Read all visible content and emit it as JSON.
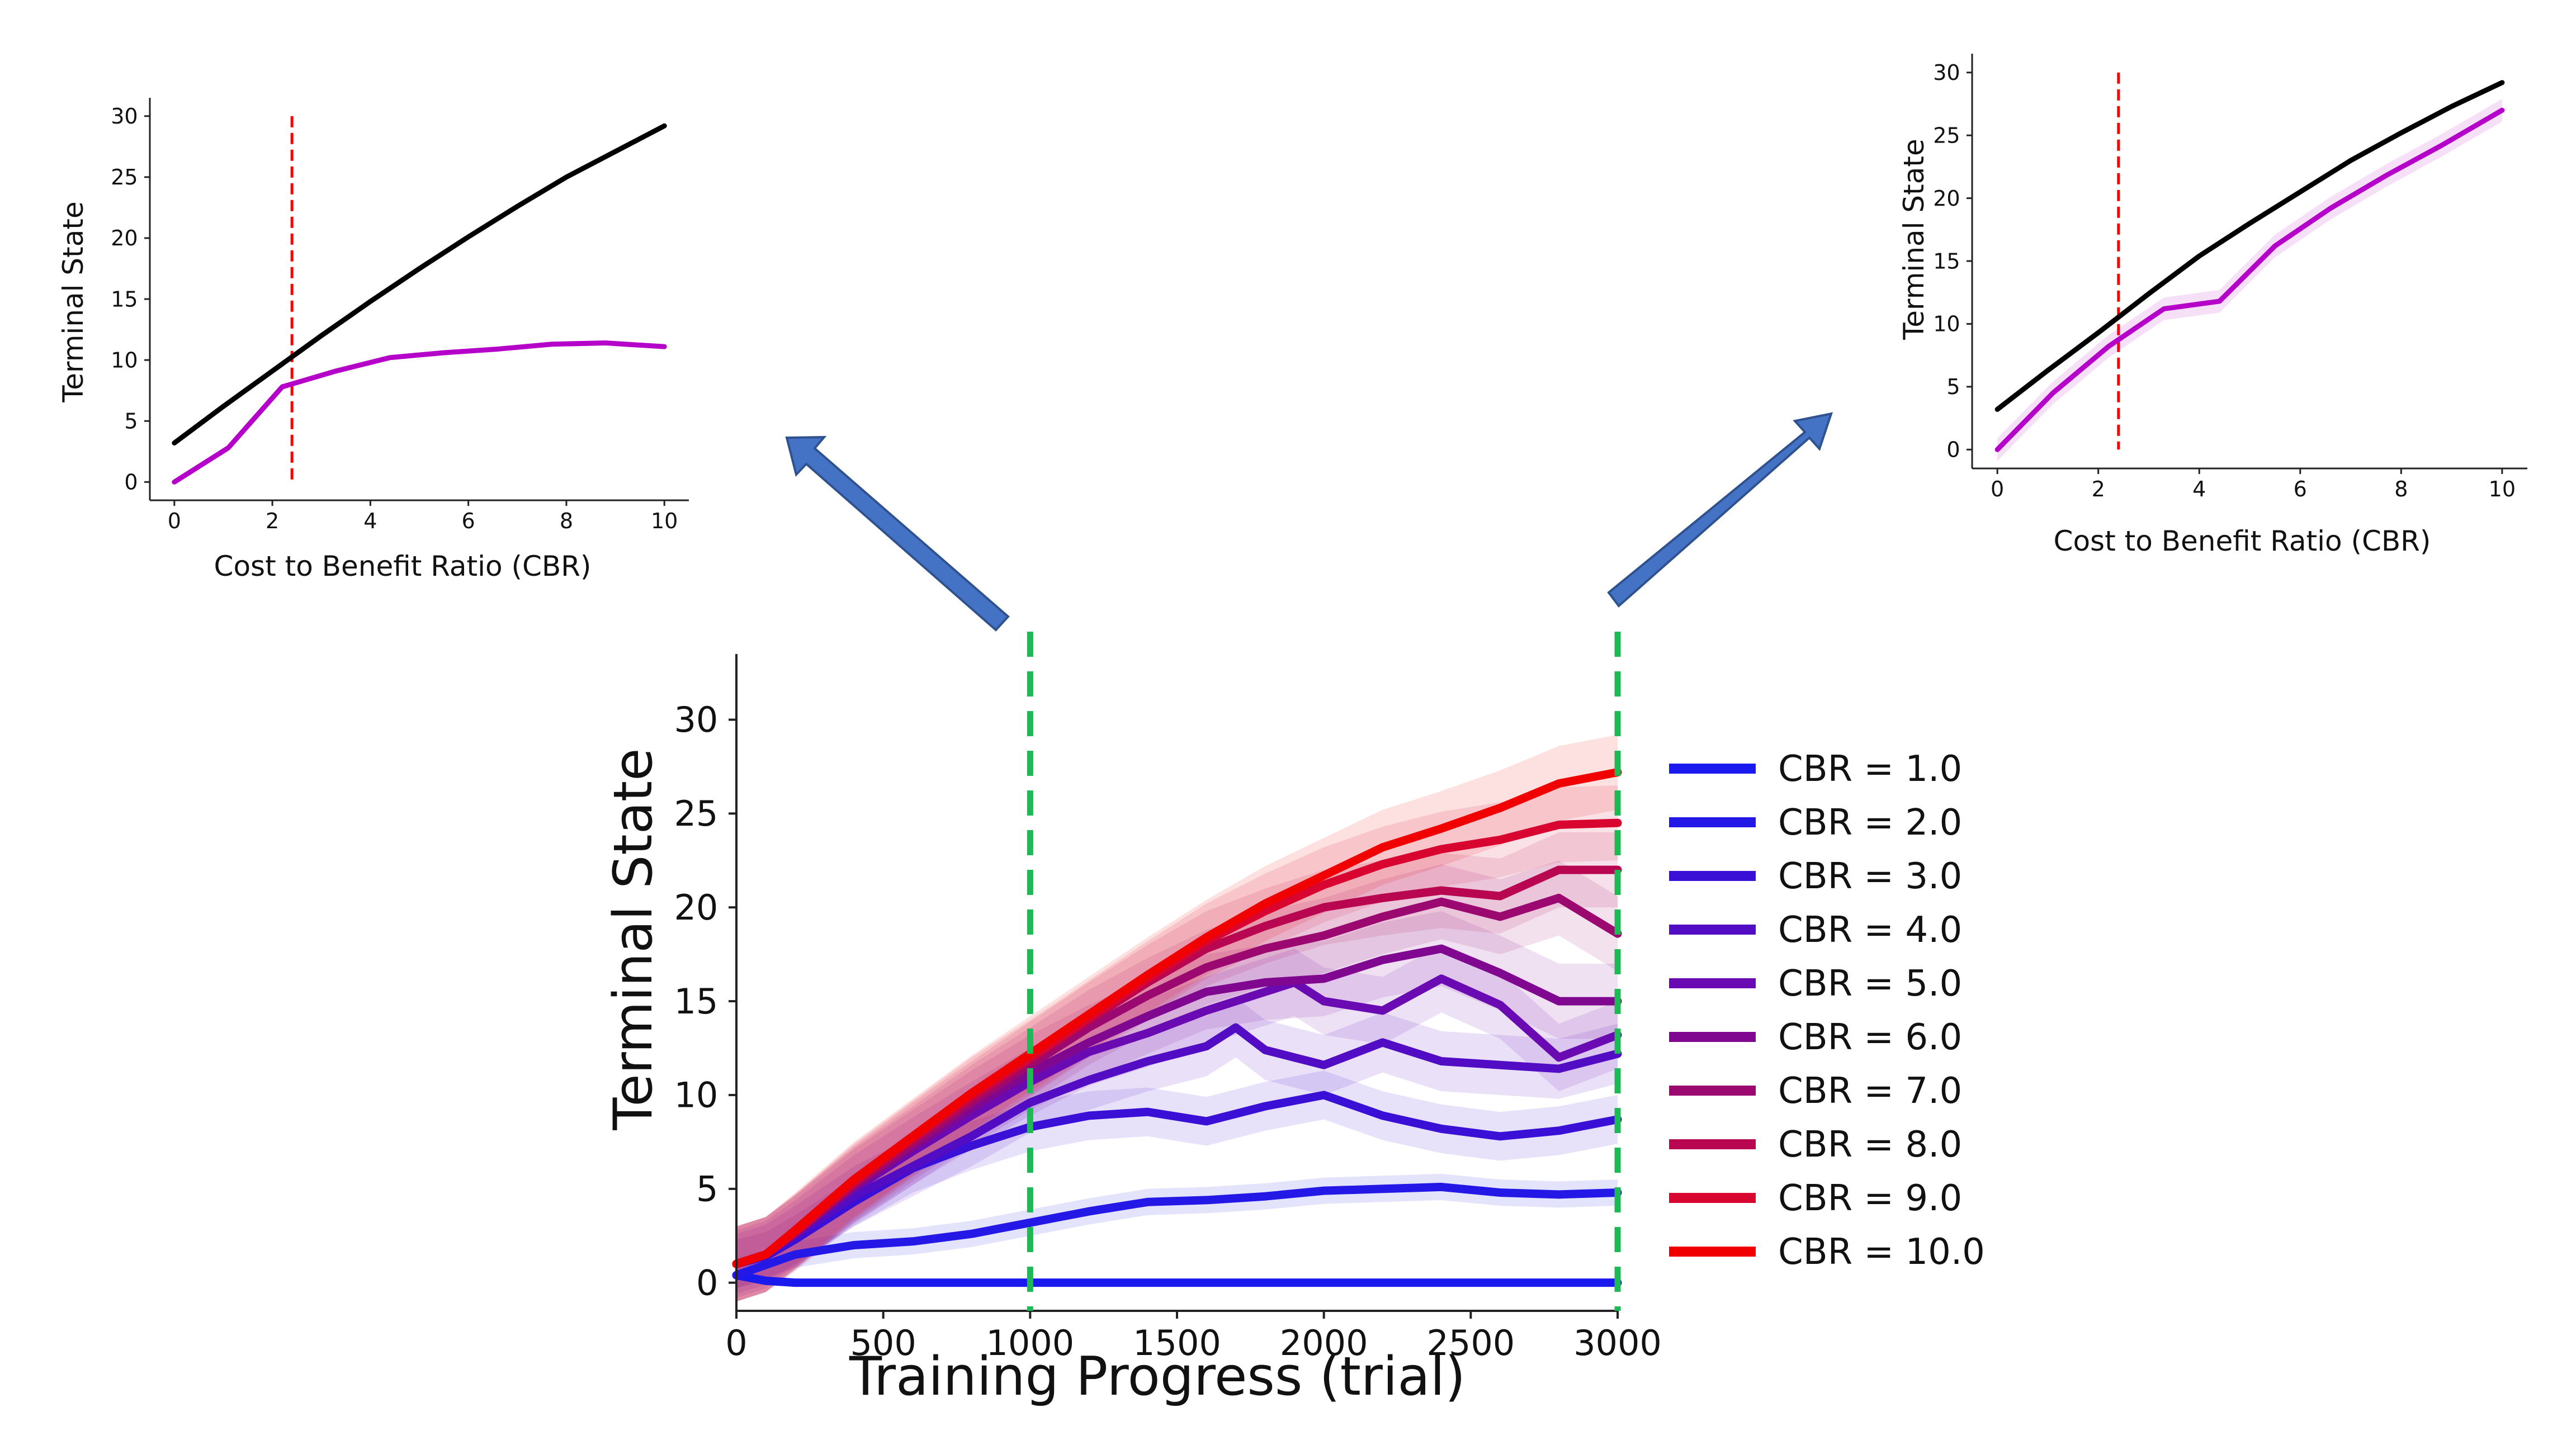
{
  "chart_data": [
    {
      "id": "main",
      "type": "line",
      "title": "",
      "xlabel": "Training Progress (trial)",
      "ylabel": "Terminal State",
      "xlim": [
        0,
        3000
      ],
      "ylim": [
        -1.5,
        33.5
      ],
      "xticks": [
        0,
        500,
        1000,
        1500,
        2000,
        2500,
        3000
      ],
      "yticks": [
        0,
        5,
        10,
        15,
        20,
        25,
        30
      ],
      "grid": false,
      "legend_position": "right",
      "markers": [
        {
          "x": 1000,
          "color": "#1db954",
          "style": "dashed"
        },
        {
          "x": 3000,
          "color": "#1db954",
          "style": "dashed"
        }
      ],
      "series": [
        {
          "name": "CBR = 1.0",
          "color": "#1a1aef",
          "band": 0.1,
          "x": [
            0,
            100,
            200,
            3000
          ],
          "y": [
            0.4,
            0.1,
            0,
            0
          ]
        },
        {
          "name": "CBR = 2.0",
          "color": "#2418e6",
          "band": 0.7,
          "x": [
            0,
            200,
            400,
            600,
            800,
            1000,
            1200,
            1400,
            1600,
            1800,
            2000,
            2200,
            2400,
            2600,
            2800,
            3000
          ],
          "y": [
            0.4,
            1.5,
            2.0,
            2.2,
            2.6,
            3.2,
            3.8,
            4.3,
            4.4,
            4.6,
            4.9,
            5.0,
            5.1,
            4.8,
            4.7,
            4.8
          ]
        },
        {
          "name": "CBR = 3.0",
          "color": "#3b10d6",
          "band": 1.3,
          "x": [
            0,
            100,
            200,
            400,
            600,
            800,
            1000,
            1200,
            1400,
            1600,
            1800,
            2000,
            2200,
            2400,
            2600,
            2800,
            3000
          ],
          "y": [
            1.0,
            1.4,
            2.3,
            4.3,
            6.1,
            7.3,
            8.3,
            8.9,
            9.1,
            8.6,
            9.4,
            10.0,
            8.9,
            8.2,
            7.8,
            8.1,
            8.7
          ]
        },
        {
          "name": "CBR = 4.0",
          "color": "#520cc4",
          "band": 1.6,
          "x": [
            0,
            100,
            200,
            400,
            600,
            800,
            1000,
            1200,
            1400,
            1600,
            1700,
            1800,
            2000,
            2200,
            2400,
            2600,
            2800,
            3000
          ],
          "y": [
            1.0,
            1.5,
            2.5,
            4.6,
            6.2,
            7.8,
            9.6,
            10.8,
            11.8,
            12.6,
            13.6,
            12.4,
            11.6,
            12.8,
            11.8,
            11.6,
            11.4,
            12.2
          ]
        },
        {
          "name": "CBR = 5.0",
          "color": "#6a0ab2",
          "band": 1.8,
          "x": [
            0,
            100,
            200,
            400,
            600,
            800,
            1000,
            1200,
            1400,
            1600,
            1800,
            1900,
            2000,
            2200,
            2400,
            2600,
            2800,
            3000
          ],
          "y": [
            1.0,
            1.5,
            2.6,
            5.0,
            7.0,
            8.9,
            10.7,
            12.3,
            13.3,
            14.5,
            15.5,
            16.0,
            15.0,
            14.5,
            16.2,
            14.8,
            12.0,
            13.2
          ]
        },
        {
          "name": "CBR = 6.0",
          "color": "#800890",
          "band": 2.0,
          "x": [
            0,
            100,
            200,
            400,
            600,
            800,
            1000,
            1200,
            1400,
            1600,
            1800,
            2000,
            2200,
            2400,
            2600,
            2800,
            3000
          ],
          "y": [
            1.0,
            1.5,
            2.6,
            5.1,
            7.2,
            9.3,
            11.2,
            12.8,
            14.2,
            15.5,
            16.0,
            16.2,
            17.2,
            17.8,
            16.5,
            15.0,
            15.0
          ]
        },
        {
          "name": "CBR = 7.0",
          "color": "#9a0870",
          "band": 2.0,
          "x": [
            0,
            100,
            200,
            400,
            600,
            800,
            1000,
            1200,
            1400,
            1600,
            1800,
            2000,
            2200,
            2400,
            2600,
            2800,
            3000
          ],
          "y": [
            1.0,
            1.5,
            2.7,
            5.2,
            7.4,
            9.6,
            11.6,
            13.6,
            15.3,
            16.8,
            17.8,
            18.5,
            19.5,
            20.3,
            19.5,
            20.5,
            18.6
          ]
        },
        {
          "name": "CBR = 8.0",
          "color": "#b80650",
          "band": 2.0,
          "x": [
            0,
            100,
            200,
            400,
            600,
            800,
            1000,
            1200,
            1400,
            1600,
            1800,
            2000,
            2200,
            2400,
            2600,
            2800,
            3000
          ],
          "y": [
            1.0,
            1.5,
            2.7,
            5.3,
            7.6,
            9.8,
            11.9,
            14.0,
            16.0,
            17.8,
            19.0,
            20.0,
            20.5,
            20.9,
            20.6,
            22.0,
            22.0
          ]
        },
        {
          "name": "CBR = 9.0",
          "color": "#d80530",
          "band": 2.0,
          "x": [
            0,
            100,
            200,
            400,
            600,
            800,
            1000,
            1200,
            1400,
            1600,
            1800,
            2000,
            2200,
            2400,
            2600,
            2800,
            3000
          ],
          "y": [
            1.0,
            1.5,
            2.7,
            5.4,
            7.7,
            10.0,
            12.0,
            14.1,
            16.2,
            18.2,
            19.8,
            21.2,
            22.3,
            23.1,
            23.6,
            24.4,
            24.5
          ]
        },
        {
          "name": "CBR = 10.0",
          "color": "#f00000",
          "band": 2.0,
          "x": [
            0,
            100,
            200,
            400,
            600,
            800,
            1000,
            1200,
            1400,
            1600,
            1800,
            2000,
            2200,
            2400,
            2600,
            2800,
            3000
          ],
          "y": [
            1.0,
            1.5,
            2.8,
            5.5,
            7.8,
            10.1,
            12.2,
            14.3,
            16.4,
            18.4,
            20.2,
            21.7,
            23.2,
            24.2,
            25.3,
            26.6,
            27.2
          ]
        }
      ]
    },
    {
      "id": "inset_left",
      "type": "line",
      "title": "",
      "xlabel": "Cost to Benefit Ratio (CBR)",
      "ylabel": "Terminal State",
      "xlim": [
        -0.5,
        10.5
      ],
      "ylim": [
        -1.5,
        31.5
      ],
      "xticks": [
        0,
        2,
        4,
        6,
        8,
        10
      ],
      "yticks": [
        0,
        5,
        10,
        15,
        20,
        25,
        30
      ],
      "grid": false,
      "reference_line": {
        "x": 2.4,
        "color": "#ff0000",
        "style": "dashed"
      },
      "series": [
        {
          "name": "black",
          "color": "#000000",
          "x": [
            0,
            1,
            2,
            3,
            4,
            5,
            6,
            7,
            8,
            9,
            10
          ],
          "y": [
            3.2,
            6.2,
            9.1,
            12.0,
            14.8,
            17.5,
            20.1,
            22.6,
            25.0,
            27.1,
            29.2
          ]
        },
        {
          "name": "magenta",
          "color": "#b400c8",
          "x": [
            0,
            1.1,
            2.2,
            3.3,
            4.4,
            5.5,
            6.6,
            7.7,
            8.8,
            10
          ],
          "y": [
            0,
            2.8,
            7.8,
            9.1,
            10.2,
            10.6,
            10.9,
            11.3,
            11.4,
            11.1
          ]
        }
      ]
    },
    {
      "id": "inset_right",
      "type": "line",
      "title": "",
      "xlabel": "Cost to Benefit Ratio (CBR)",
      "ylabel": "Terminal State",
      "xlim": [
        -0.5,
        10.5
      ],
      "ylim": [
        -1.5,
        31.5
      ],
      "xticks": [
        0,
        2,
        4,
        6,
        8,
        10
      ],
      "yticks": [
        0,
        5,
        10,
        15,
        20,
        25,
        30
      ],
      "grid": false,
      "reference_line": {
        "x": 2.4,
        "color": "#ff0000",
        "style": "dashed"
      },
      "series": [
        {
          "name": "black",
          "color": "#000000",
          "x": [
            0,
            1,
            2,
            3,
            4,
            5,
            6,
            7,
            8,
            9,
            10
          ],
          "y": [
            3.2,
            6.3,
            9.3,
            12.4,
            15.4,
            18.0,
            20.5,
            23.0,
            25.2,
            27.3,
            29.2
          ]
        },
        {
          "name": "magenta",
          "color": "#b400c8",
          "x": [
            0,
            1.1,
            2.2,
            3.3,
            4.4,
            5.5,
            6.6,
            7.7,
            8.8,
            10
          ],
          "y": [
            0,
            4.5,
            8.2,
            11.2,
            11.8,
            16.2,
            19.2,
            21.8,
            24.2,
            27.0
          ]
        }
      ]
    }
  ]
}
